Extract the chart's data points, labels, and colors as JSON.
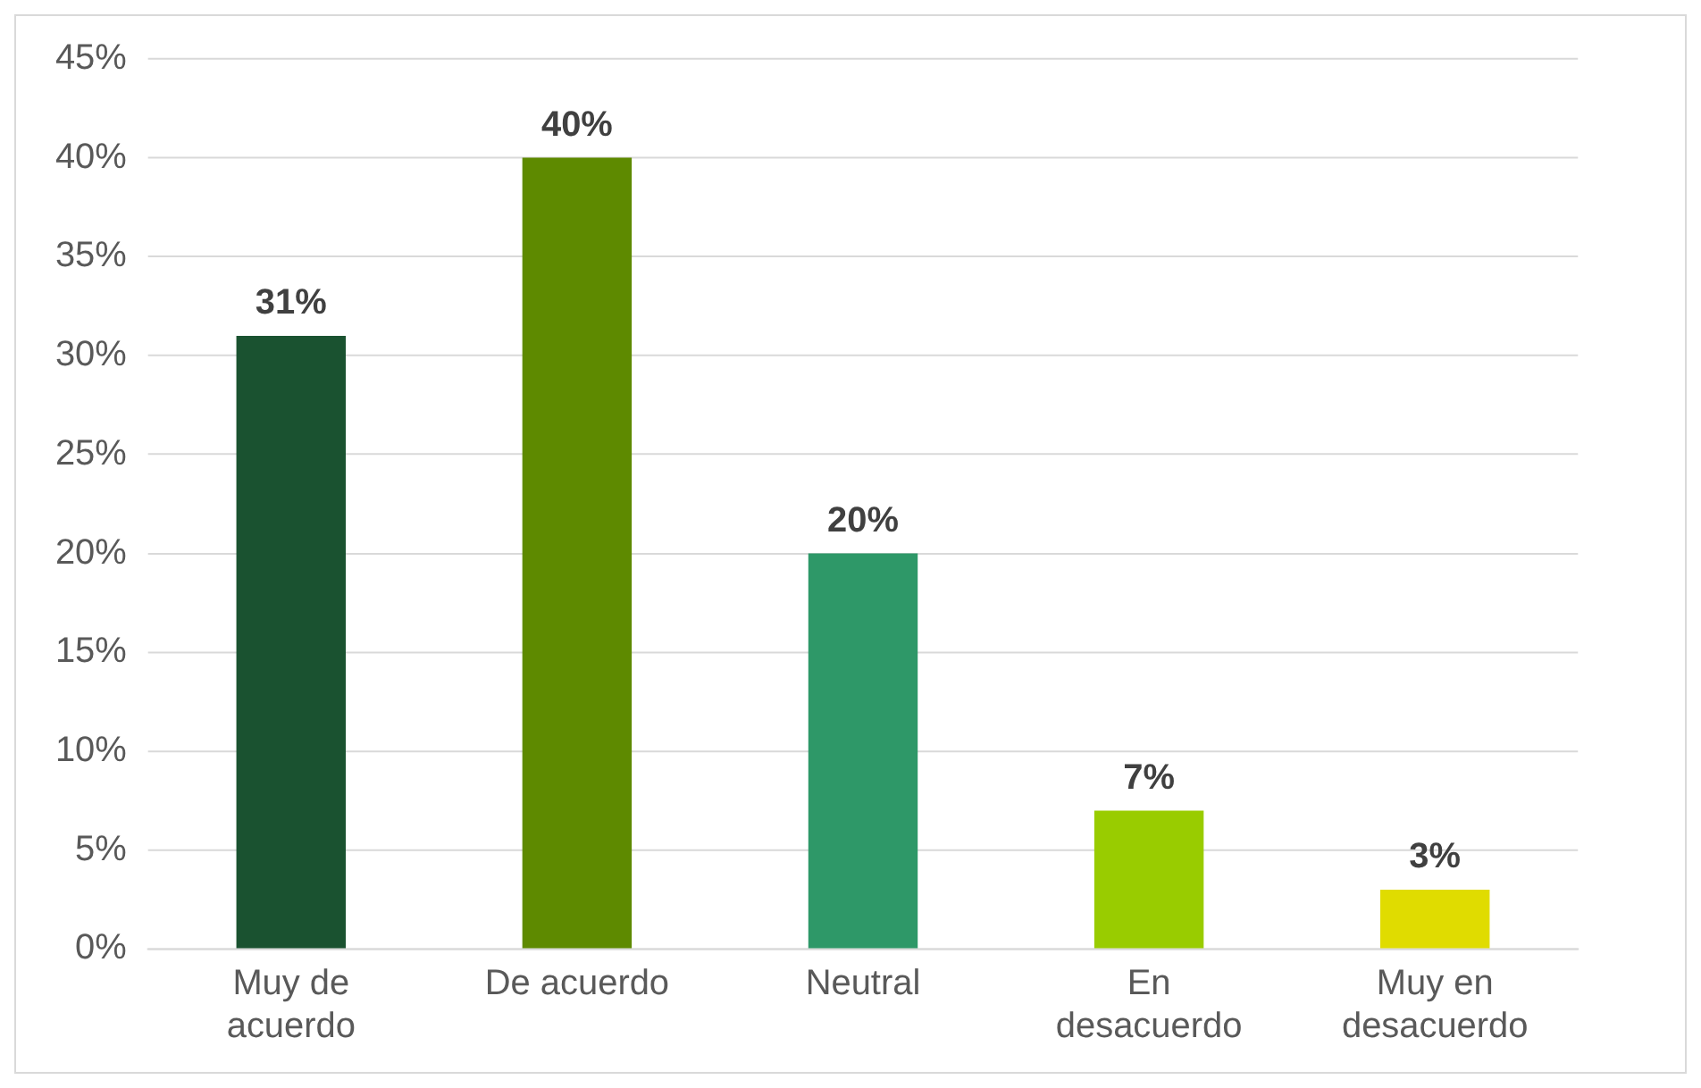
{
  "chart_data": {
    "type": "bar",
    "categories": [
      "Muy de acuerdo",
      "De acuerdo",
      "Neutral",
      "En desacuerdo",
      "Muy en desacuerdo"
    ],
    "values": [
      31,
      40,
      20,
      7,
      3
    ],
    "colors": [
      "#1a5230",
      "#5e8a00",
      "#2e9868",
      "#99cc00",
      "#e0dc00"
    ],
    "value_labels": [
      "31%",
      "40%",
      "20%",
      "7%",
      "3%"
    ],
    "ylim": [
      0,
      45
    ],
    "yticks": [
      {
        "value": 0,
        "label": "0%"
      },
      {
        "value": 5,
        "label": "5%"
      },
      {
        "value": 10,
        "label": "10%"
      },
      {
        "value": 15,
        "label": "15%"
      },
      {
        "value": 20,
        "label": "20%"
      },
      {
        "value": 25,
        "label": "25%"
      },
      {
        "value": 30,
        "label": "30%"
      },
      {
        "value": 35,
        "label": "35%"
      },
      {
        "value": 40,
        "label": "40%"
      },
      {
        "value": 45,
        "label": "45%"
      }
    ],
    "grid": "y",
    "legend": false
  }
}
